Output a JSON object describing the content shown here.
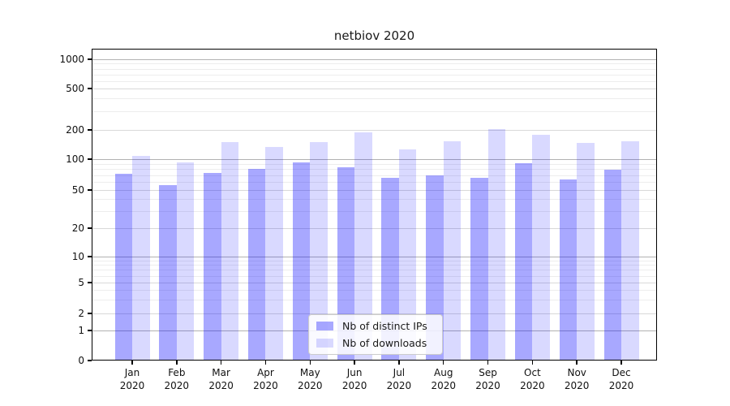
{
  "title": "netbiov 2020",
  "legend": {
    "items": [
      {
        "label": "Nb of distinct IPs",
        "color": "rgba(0,0,255,0.34)"
      },
      {
        "label": "Nb of downloads",
        "color": "rgba(0,0,255,0.15)"
      }
    ]
  },
  "chart_data": {
    "type": "bar",
    "title": "netbiov 2020",
    "categories": [
      "Jan 2020",
      "Feb 2020",
      "Mar 2020",
      "Apr 2020",
      "May 2020",
      "Jun 2020",
      "Jul 2020",
      "Aug 2020",
      "Sep 2020",
      "Oct 2020",
      "Nov 2020",
      "Dec 2020"
    ],
    "series": [
      {
        "name": "Nb of distinct IPs",
        "color": "rgba(0,0,255,0.34)",
        "values": [
          72,
          56,
          74,
          81,
          93,
          83,
          66,
          70,
          66,
          91,
          63,
          79
        ]
      },
      {
        "name": "Nb of downloads",
        "color": "rgba(0,0,255,0.15)",
        "values": [
          108,
          93,
          150,
          134,
          151,
          190,
          126,
          152,
          203,
          178,
          146,
          152
        ]
      }
    ],
    "xlabel": "",
    "ylabel": "",
    "yscale": "symlog",
    "yticks": [
      0,
      1,
      2,
      5,
      10,
      20,
      50,
      100,
      200,
      500,
      1000
    ],
    "ylim": [
      0,
      1300
    ],
    "grid": true,
    "legend_position": "lower center",
    "grid_colors": {
      "major": "#b2b2b2",
      "labeled": "#d9d9d9",
      "minor": "#ededed"
    }
  }
}
